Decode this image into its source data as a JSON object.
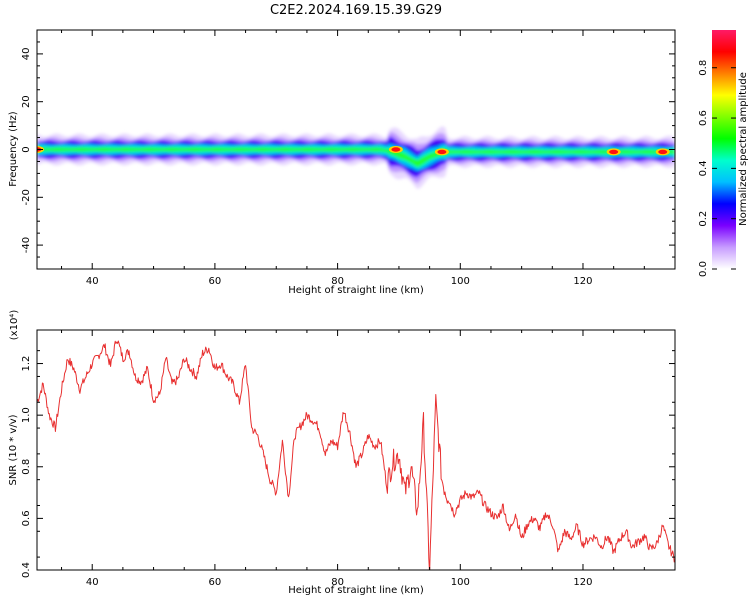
{
  "title": "C2E2.2024.169.15.39.G29",
  "chart_data": [
    {
      "type": "heatmap",
      "xlabel": "Height of straight line (km)",
      "ylabel": "Frequency (Hz)",
      "xlim": [
        31,
        135
      ],
      "ylim": [
        -50,
        50
      ],
      "x_ticks": [
        40,
        60,
        80,
        100,
        120
      ],
      "y_ticks": [
        40,
        20,
        0,
        -20,
        -40
      ],
      "colorbar": {
        "label": "Normalized spectral amplitude",
        "ticks": [
          "0.0",
          "0.2",
          "0.4",
          "0.6",
          "0.8"
        ],
        "range": [
          0,
          0.95
        ],
        "colors": [
          "#ffffff",
          "#c79cff",
          "#7a00ff",
          "#0000ff",
          "#00bfff",
          "#00ffcc",
          "#00ff00",
          "#7fff00",
          "#ffff00",
          "#ff8000",
          "#ff0000",
          "#ff1a66"
        ]
      },
      "band": {
        "center_hz": [
          [
            31,
            0
          ],
          [
            87,
            0
          ],
          [
            89,
            -1
          ],
          [
            91,
            -3
          ],
          [
            93,
            -6
          ],
          [
            95,
            -3
          ],
          [
            97,
            -1
          ],
          [
            99,
            -1
          ],
          [
            135,
            -1
          ]
        ],
        "peaks": [
          {
            "x": 31,
            "y": 0,
            "amp": 0.85
          },
          {
            "x": 89.5,
            "y": 0,
            "amp": 0.9
          },
          {
            "x": 97,
            "y": -1,
            "amp": 0.9
          },
          {
            "x": 125,
            "y": -1,
            "amp": 0.85
          },
          {
            "x": 133,
            "y": -1,
            "amp": 0.7
          }
        ]
      },
      "grid": false
    },
    {
      "type": "line",
      "xlabel": "Height of straight line (km)",
      "ylabel": "SNR (10 * v/v)",
      "y_multiplier": "(x10⁴)",
      "xlim": [
        31,
        135
      ],
      "ylim": [
        0.4,
        1.33
      ],
      "x_ticks": [
        40,
        60,
        80,
        100,
        120
      ],
      "y_ticks": [
        "0.4",
        "0.6",
        "0.8",
        "1.0",
        "1.2"
      ],
      "color": "#e83030",
      "series": [
        {
          "x": [
            31,
            32,
            33,
            34,
            35,
            36,
            37,
            38,
            39,
            40,
            41,
            42,
            43,
            44,
            45,
            46,
            47,
            48,
            49,
            50,
            51,
            52,
            53,
            54,
            55,
            56,
            57,
            58,
            59,
            60,
            61,
            62,
            63,
            64,
            65,
            66,
            67,
            68,
            69,
            70,
            71,
            72,
            73,
            74,
            75,
            76,
            77,
            78,
            79,
            80,
            81,
            82,
            83,
            84,
            85,
            86,
            87,
            88,
            89,
            90,
            91,
            92,
            93,
            94,
            95,
            96,
            97,
            98,
            99,
            100,
            101,
            102,
            103,
            104,
            105,
            106,
            107,
            108,
            109,
            110,
            111,
            112,
            113,
            114,
            115,
            116,
            117,
            118,
            119,
            120,
            121,
            122,
            123,
            124,
            125,
            126,
            127,
            128,
            129,
            130,
            131,
            132,
            133,
            134,
            135
          ],
          "y": [
            1.05,
            1.12,
            1.0,
            0.95,
            1.1,
            1.22,
            1.18,
            1.1,
            1.15,
            1.2,
            1.23,
            1.27,
            1.19,
            1.3,
            1.22,
            1.25,
            1.15,
            1.13,
            1.18,
            1.06,
            1.08,
            1.22,
            1.12,
            1.14,
            1.22,
            1.18,
            1.15,
            1.24,
            1.26,
            1.18,
            1.2,
            1.15,
            1.12,
            1.05,
            1.2,
            0.95,
            0.92,
            0.84,
            0.75,
            0.7,
            0.9,
            0.68,
            0.92,
            0.96,
            1.0,
            0.98,
            0.95,
            0.85,
            0.9,
            0.88,
            1.02,
            0.93,
            0.8,
            0.85,
            0.92,
            0.88,
            0.9,
            0.73,
            0.82,
            0.85,
            0.7,
            0.8,
            0.62,
            0.97,
            0.4,
            1.05,
            0.75,
            0.68,
            0.62,
            0.67,
            0.7,
            0.68,
            0.7,
            0.65,
            0.62,
            0.6,
            0.65,
            0.55,
            0.62,
            0.52,
            0.58,
            0.6,
            0.56,
            0.62,
            0.58,
            0.47,
            0.55,
            0.52,
            0.57,
            0.5,
            0.52,
            0.53,
            0.49,
            0.53,
            0.47,
            0.52,
            0.55,
            0.49,
            0.51,
            0.53,
            0.48,
            0.5,
            0.57,
            0.49,
            0.44
          ]
        }
      ]
    }
  ]
}
